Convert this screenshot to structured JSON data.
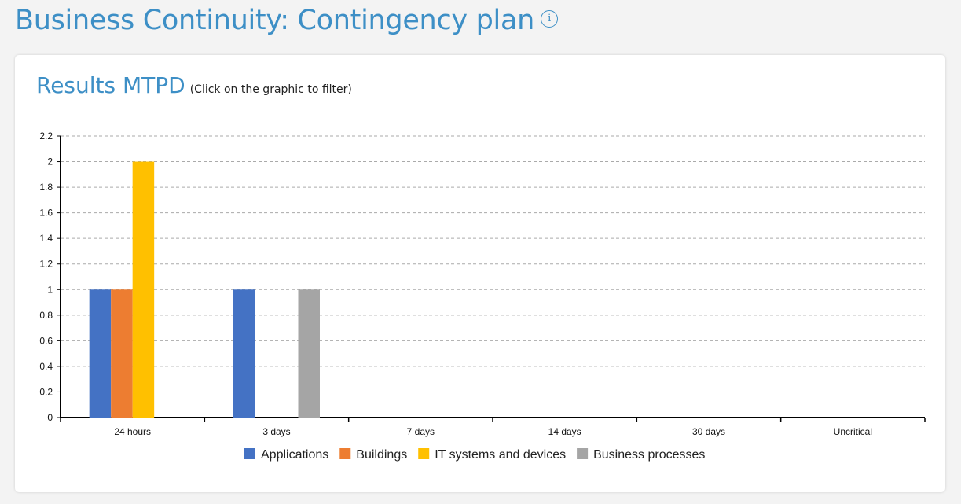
{
  "page": {
    "title": "Business Continuity: Contingency plan",
    "info_icon": "i"
  },
  "card": {
    "title": "Results MTPD",
    "subtitle": "(Click on the graphic to filter)"
  },
  "chart_data": {
    "type": "bar",
    "title": "Results MTPD",
    "categories": [
      "24 hours",
      "3 days",
      "7 days",
      "14 days",
      "30 days",
      "Uncritical"
    ],
    "series": [
      {
        "name": "Applications",
        "color": "#4472c4",
        "values": [
          1,
          1,
          0,
          0,
          0,
          0
        ]
      },
      {
        "name": "Buildings",
        "color": "#ed7d31",
        "values": [
          1,
          0,
          0,
          0,
          0,
          0
        ]
      },
      {
        "name": "IT systems and devices",
        "color": "#ffc000",
        "values": [
          2,
          0,
          0,
          0,
          0,
          0
        ]
      },
      {
        "name": "Business processes",
        "color": "#a5a5a5",
        "values": [
          0,
          1,
          0,
          0,
          0,
          0
        ]
      }
    ],
    "ylim": [
      0,
      2.2
    ],
    "yticks": [
      "0",
      "0.2",
      "0.4",
      "0.6",
      "0.8",
      "1",
      "1.2",
      "1.4",
      "1.6",
      "1.8",
      "2",
      "2.2"
    ],
    "grid": true,
    "legend": "bottom"
  }
}
